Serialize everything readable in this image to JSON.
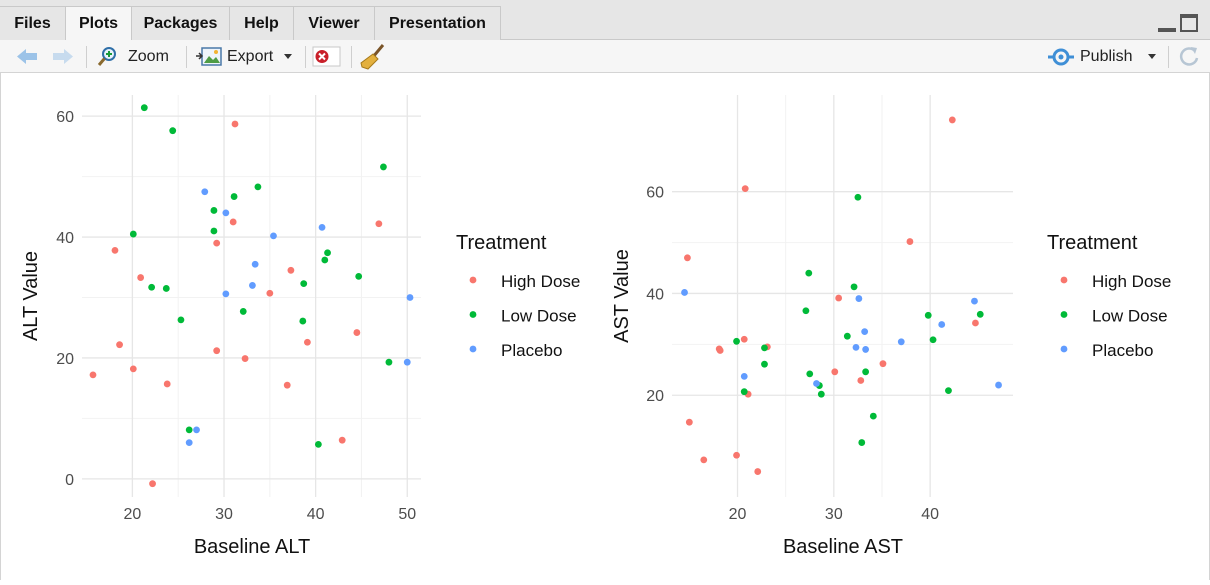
{
  "tabs": [
    "Files",
    "Plots",
    "Packages",
    "Help",
    "Viewer",
    "Presentation"
  ],
  "active_tab": "Plots",
  "toolbar": {
    "zoom_label": "Zoom",
    "export_label": "Export",
    "publish_label": "Publish"
  },
  "colors": {
    "High Dose": "#F8766D",
    "Low Dose": "#00BA38",
    "Placebo": "#619CFF"
  },
  "chart_data": [
    {
      "type": "scatter",
      "xlabel": "Baseline ALT",
      "ylabel": "ALT Value",
      "xlim": [
        14.5,
        51.5
      ],
      "ylim": [
        -3,
        63.5
      ],
      "xticks": [
        20,
        30,
        40,
        50
      ],
      "yticks": [
        0,
        20,
        40,
        60
      ],
      "grid": true,
      "legend_title": "Treatment",
      "legend_position": "right",
      "series": [
        {
          "name": "High Dose",
          "points": [
            [
              15.7,
              17.2
            ],
            [
              18.1,
              37.8
            ],
            [
              18.6,
              22.2
            ],
            [
              20.1,
              18.2
            ],
            [
              20.9,
              33.3
            ],
            [
              22.2,
              -0.8
            ],
            [
              23.8,
              15.7
            ],
            [
              29.2,
              21.2
            ],
            [
              29.2,
              39.0
            ],
            [
              31.0,
              42.5
            ],
            [
              31.2,
              58.7
            ],
            [
              32.3,
              19.9
            ],
            [
              35.0,
              30.7
            ],
            [
              36.9,
              15.5
            ],
            [
              37.3,
              34.5
            ],
            [
              39.1,
              22.6
            ],
            [
              42.9,
              6.4
            ],
            [
              44.5,
              24.2
            ],
            [
              46.9,
              42.2
            ]
          ]
        },
        {
          "name": "Low Dose",
          "points": [
            [
              20.1,
              40.5
            ],
            [
              21.3,
              61.4
            ],
            [
              22.1,
              31.7
            ],
            [
              23.7,
              31.5
            ],
            [
              24.4,
              57.6
            ],
            [
              25.3,
              26.3
            ],
            [
              26.2,
              8.1
            ],
            [
              28.9,
              44.4
            ],
            [
              28.9,
              41.0
            ],
            [
              31.1,
              46.7
            ],
            [
              32.1,
              27.7
            ],
            [
              33.7,
              48.3
            ],
            [
              38.7,
              32.3
            ],
            [
              38.6,
              26.1
            ],
            [
              40.3,
              5.7
            ],
            [
              41.0,
              36.2
            ],
            [
              41.3,
              37.4
            ],
            [
              44.7,
              33.5
            ],
            [
              47.4,
              51.6
            ],
            [
              48.0,
              19.3
            ]
          ]
        },
        {
          "name": "Placebo",
          "points": [
            [
              26.2,
              6.0
            ],
            [
              27.0,
              8.1
            ],
            [
              27.9,
              47.5
            ],
            [
              30.2,
              44.0
            ],
            [
              30.2,
              30.6
            ],
            [
              33.1,
              32.0
            ],
            [
              33.4,
              35.5
            ],
            [
              35.4,
              40.2
            ],
            [
              40.7,
              41.6
            ],
            [
              50.0,
              19.3
            ],
            [
              50.3,
              30.0
            ]
          ]
        }
      ]
    },
    {
      "type": "scatter",
      "xlabel": "Baseline AST",
      "ylabel": "AST Value",
      "xlim": [
        13.2,
        48.6
      ],
      "ylim": [
        0,
        79
      ],
      "xticks": [
        20,
        30,
        40
      ],
      "yticks": [
        20,
        40,
        60
      ],
      "grid": true,
      "legend_title": "Treatment",
      "legend_position": "right",
      "series": [
        {
          "name": "High Dose",
          "points": [
            [
              14.8,
              47.0
            ],
            [
              15.0,
              14.7
            ],
            [
              16.5,
              7.3
            ],
            [
              18.1,
              29.1
            ],
            [
              18.2,
              28.8
            ],
            [
              19.9,
              8.2
            ],
            [
              20.7,
              31.0
            ],
            [
              20.8,
              60.6
            ],
            [
              21.1,
              20.2
            ],
            [
              22.1,
              5.0
            ],
            [
              23.1,
              29.5
            ],
            [
              30.1,
              24.6
            ],
            [
              30.5,
              39.1
            ],
            [
              32.8,
              22.9
            ],
            [
              35.1,
              26.2
            ],
            [
              37.9,
              50.2
            ],
            [
              42.3,
              74.1
            ],
            [
              44.7,
              34.2
            ]
          ]
        },
        {
          "name": "Low Dose",
          "points": [
            [
              19.9,
              30.6
            ],
            [
              20.7,
              20.7
            ],
            [
              22.8,
              26.1
            ],
            [
              22.8,
              29.3
            ],
            [
              27.1,
              36.6
            ],
            [
              27.4,
              44.0
            ],
            [
              27.5,
              24.2
            ],
            [
              28.5,
              21.9
            ],
            [
              28.7,
              20.2
            ],
            [
              31.4,
              31.6
            ],
            [
              32.1,
              41.3
            ],
            [
              32.5,
              58.9
            ],
            [
              32.9,
              10.7
            ],
            [
              33.3,
              24.6
            ],
            [
              34.1,
              15.9
            ],
            [
              39.8,
              35.7
            ],
            [
              40.3,
              30.9
            ],
            [
              41.9,
              20.9
            ],
            [
              45.2,
              35.9
            ]
          ]
        },
        {
          "name": "Placebo",
          "points": [
            [
              14.5,
              40.2
            ],
            [
              20.7,
              23.7
            ],
            [
              28.2,
              22.3
            ],
            [
              32.3,
              29.4
            ],
            [
              32.6,
              39.0
            ],
            [
              33.2,
              32.5
            ],
            [
              33.3,
              29.0
            ],
            [
              37.0,
              30.5
            ],
            [
              41.2,
              33.9
            ],
            [
              44.6,
              38.5
            ],
            [
              47.1,
              22.0
            ]
          ]
        }
      ]
    }
  ]
}
